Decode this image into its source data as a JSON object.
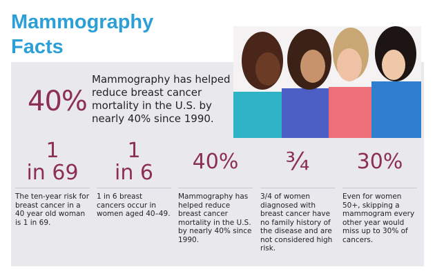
{
  "header": {
    "title_lines": [
      "Mammography",
      "Facts"
    ]
  },
  "highlight": {
    "stat": "40%",
    "text": "Mammography has helped reduce breast cancer mortality in the U.S. by nearly 40% since 1990."
  },
  "facts": [
    {
      "stat_lines": [
        "1",
        "in 69"
      ],
      "text": "The ten-year risk for breast cancer in a 40 year old woman is 1 in 69."
    },
    {
      "stat_lines": [
        "1",
        "in 6"
      ],
      "text": "1 in 6 breast cancers occur in women aged 40–49."
    },
    {
      "stat_lines": [
        "40%"
      ],
      "text": "Mammography has helped reduce breast cancer mortality in the U.S. by nearly 40% since 1990."
    },
    {
      "stat_lines": [
        "¾"
      ],
      "text": "3/4 of women diagnosed with breast cancer have no family history of the disease and are not considered high risk."
    },
    {
      "stat_lines": [
        "30%"
      ],
      "text": "Even for women 50+, skipping a mammogram every other year would miss up to 30% of cancers."
    }
  ]
}
